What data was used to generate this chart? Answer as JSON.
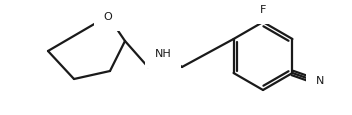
{
  "bg_color": "#ffffff",
  "line_color": "#1a1a1a",
  "text_color": "#1a1a1a",
  "label_O": "O",
  "label_NH": "NH",
  "label_F": "F",
  "label_N": "N",
  "line_width": 1.6,
  "font_size": 8.0,
  "figsize": [
    3.52,
    1.16
  ],
  "dpi": 100
}
